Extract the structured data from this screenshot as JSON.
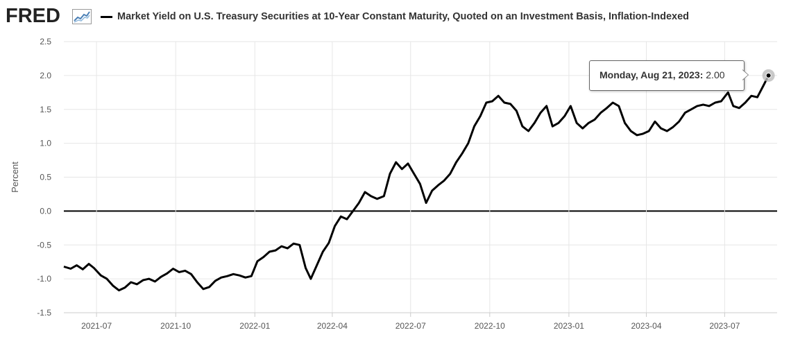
{
  "header": {
    "logo_text": "FRED",
    "logo_icon": "line-chart-icon",
    "title": "Market Yield on U.S. Treasury Securities at 10-Year Constant Maturity, Quoted on an Investment Basis, Inflation-Indexed"
  },
  "tooltip": {
    "date": "Monday, Aug 21, 2023:",
    "value": "2.00"
  },
  "colors": {
    "series": "#000000",
    "grid": "#e6e6e6",
    "zero_line": "#000000",
    "axis_text": "#555555"
  },
  "chart_data": {
    "type": "line",
    "title": "Market Yield on U.S. Treasury Securities at 10-Year Constant Maturity, Quoted on an Investment Basis, Inflation-Indexed",
    "xlabel": "",
    "ylabel": "Percent",
    "ylim": [
      -1.5,
      2.5
    ],
    "yticks": [
      "-1.5",
      "-1.0",
      "-0.5",
      "0.0",
      "0.5",
      "1.0",
      "1.5",
      "2.0",
      "2.5"
    ],
    "xlim": [
      "2021-05-24",
      "2023-08-31"
    ],
    "xticks": [
      "2021-07",
      "2021-10",
      "2022-01",
      "2022-04",
      "2022-07",
      "2022-10",
      "2023-01",
      "2023-04",
      "2023-07"
    ],
    "grid": true,
    "legend": "none",
    "series": [
      {
        "x": [
          "2021-05-24",
          "2021-06-01",
          "2021-06-08",
          "2021-06-15",
          "2021-06-22",
          "2021-06-28",
          "2021-07-06",
          "2021-07-13",
          "2021-07-20",
          "2021-07-27",
          "2021-08-03",
          "2021-08-10",
          "2021-08-17",
          "2021-08-24",
          "2021-08-31",
          "2021-09-07",
          "2021-09-14",
          "2021-09-21",
          "2021-09-28",
          "2021-10-05",
          "2021-10-12",
          "2021-10-19",
          "2021-10-26",
          "2021-11-02",
          "2021-11-09",
          "2021-11-16",
          "2021-11-23",
          "2021-11-30",
          "2021-12-07",
          "2021-12-14",
          "2021-12-21",
          "2021-12-28",
          "2022-01-04",
          "2022-01-11",
          "2022-01-18",
          "2022-01-25",
          "2022-02-01",
          "2022-02-08",
          "2022-02-15",
          "2022-02-22",
          "2022-03-01",
          "2022-03-07",
          "2022-03-14",
          "2022-03-21",
          "2022-03-28",
          "2022-04-04",
          "2022-04-11",
          "2022-04-18",
          "2022-04-25",
          "2022-05-02",
          "2022-05-09",
          "2022-05-16",
          "2022-05-23",
          "2022-05-31",
          "2022-06-07",
          "2022-06-14",
          "2022-06-21",
          "2022-06-28",
          "2022-07-05",
          "2022-07-12",
          "2022-07-19",
          "2022-07-26",
          "2022-08-02",
          "2022-08-09",
          "2022-08-16",
          "2022-08-23",
          "2022-08-30",
          "2022-09-06",
          "2022-09-13",
          "2022-09-20",
          "2022-09-27",
          "2022-10-04",
          "2022-10-11",
          "2022-10-18",
          "2022-10-25",
          "2022-11-01",
          "2022-11-08",
          "2022-11-15",
          "2022-11-22",
          "2022-11-29",
          "2022-12-06",
          "2022-12-13",
          "2022-12-20",
          "2022-12-27",
          "2023-01-03",
          "2023-01-10",
          "2023-01-17",
          "2023-01-24",
          "2023-01-31",
          "2023-02-07",
          "2023-02-14",
          "2023-02-21",
          "2023-02-28",
          "2023-03-07",
          "2023-03-14",
          "2023-03-21",
          "2023-03-28",
          "2023-04-04",
          "2023-04-11",
          "2023-04-18",
          "2023-04-25",
          "2023-05-02",
          "2023-05-09",
          "2023-05-16",
          "2023-05-23",
          "2023-05-30",
          "2023-06-06",
          "2023-06-13",
          "2023-06-20",
          "2023-06-27",
          "2023-07-05",
          "2023-07-11",
          "2023-07-18",
          "2023-07-25",
          "2023-08-01",
          "2023-08-08",
          "2023-08-15",
          "2023-08-21"
        ],
        "values": [
          -0.82,
          -0.85,
          -0.8,
          -0.86,
          -0.78,
          -0.84,
          -0.95,
          -1.0,
          -1.1,
          -1.17,
          -1.13,
          -1.05,
          -1.08,
          -1.02,
          -1.0,
          -1.04,
          -0.97,
          -0.92,
          -0.85,
          -0.9,
          -0.88,
          -0.93,
          -1.05,
          -1.15,
          -1.12,
          -1.03,
          -0.98,
          -0.96,
          -0.93,
          -0.95,
          -0.98,
          -0.96,
          -0.74,
          -0.68,
          -0.6,
          -0.58,
          -0.52,
          -0.55,
          -0.48,
          -0.5,
          -0.84,
          -1.0,
          -0.8,
          -0.6,
          -0.47,
          -0.22,
          -0.08,
          -0.12,
          0.0,
          0.12,
          0.28,
          0.22,
          0.18,
          0.22,
          0.55,
          0.72,
          0.62,
          0.7,
          0.55,
          0.4,
          0.12,
          0.3,
          0.38,
          0.45,
          0.55,
          0.72,
          0.85,
          1.0,
          1.25,
          1.4,
          1.6,
          1.62,
          1.7,
          1.6,
          1.58,
          1.48,
          1.25,
          1.18,
          1.3,
          1.45,
          1.55,
          1.25,
          1.3,
          1.4,
          1.55,
          1.3,
          1.22,
          1.3,
          1.35,
          1.45,
          1.52,
          1.6,
          1.55,
          1.3,
          1.18,
          1.12,
          1.14,
          1.18,
          1.32,
          1.22,
          1.18,
          1.24,
          1.32,
          1.45,
          1.5,
          1.55,
          1.57,
          1.55,
          1.6,
          1.62,
          1.75,
          1.55,
          1.52,
          1.6,
          1.7,
          1.68,
          1.85,
          2.0
        ]
      }
    ]
  }
}
